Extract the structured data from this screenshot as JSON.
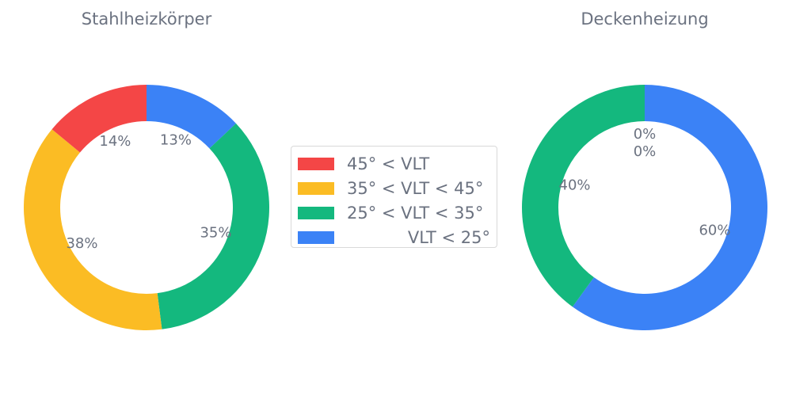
{
  "chart_data": [
    {
      "type": "pie",
      "donut": true,
      "title": "Stahlheizkörper",
      "categories": [
        "VLT < 25°",
        "25° < VLT < 35°",
        "35° < VLT < 45°",
        "45° < VLT"
      ],
      "values": [
        13,
        35,
        38,
        14
      ],
      "labels": [
        "13%",
        "35%",
        "38%",
        "14%"
      ],
      "colors": [
        "#3b82f6",
        "#14b87e",
        "#fbbc24",
        "#f44646"
      ]
    },
    {
      "type": "pie",
      "donut": true,
      "title": "Deckenheizung",
      "categories": [
        "VLT < 25°",
        "25° < VLT < 35°",
        "35° < VLT < 45°",
        "45° < VLT"
      ],
      "values": [
        60,
        40,
        0,
        0
      ],
      "labels": [
        "60%",
        "40%",
        "0%",
        "0%"
      ],
      "colors": [
        "#3b82f6",
        "#14b87e",
        "#fbbc24",
        "#f44646"
      ]
    }
  ],
  "legend": {
    "placement": "center",
    "items": [
      {
        "label": "45° < VLT",
        "color": "#f44646"
      },
      {
        "label": "35° < VLT < 45°",
        "color": "#fbbc24"
      },
      {
        "label": "25° < VLT < 35°",
        "color": "#14b87e"
      },
      {
        "label": "VLT < 25°",
        "color": "#3b82f6"
      }
    ]
  }
}
